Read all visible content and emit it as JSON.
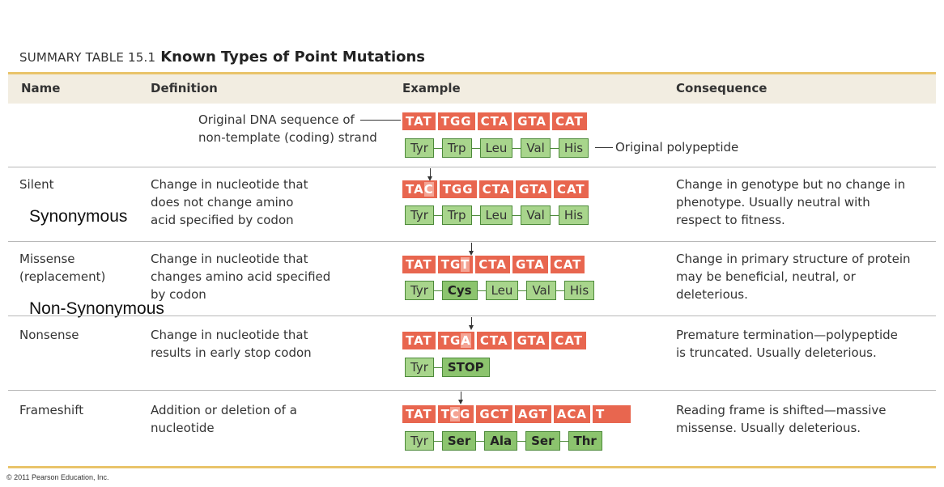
{
  "title": {
    "label": "SUMMARY TABLE 15.1",
    "main": "Known Types of Point Mutations"
  },
  "headers": {
    "name": "Name",
    "definition": "Definition",
    "example": "Example",
    "consequence": "Consequence"
  },
  "original": {
    "label_line1": "Original DNA sequence of",
    "label_line2": "non-template (coding) strand",
    "dna": [
      "TAT",
      "TGG",
      "CTA",
      "GTA",
      "CAT"
    ],
    "peptide": [
      "Tyr",
      "Trp",
      "Leu",
      "Val",
      "His"
    ],
    "peptide_label": "Original polypeptide"
  },
  "rows": [
    {
      "name": "Silent",
      "definition": [
        "Change in nucleotide that",
        "does not change amino",
        "acid specified by codon"
      ],
      "dna": [
        [
          "TA",
          "C",
          ""
        ],
        [
          "TGG",
          "",
          ""
        ],
        [
          "CTA",
          "",
          ""
        ],
        [
          "GTA",
          "",
          ""
        ],
        [
          "CAT",
          "",
          ""
        ]
      ],
      "peptide": [
        "Tyr",
        "Trp",
        "Leu",
        "Val",
        "His"
      ],
      "consequence": [
        "Change in genotype but no change in",
        "phenotype. Usually neutral with",
        "respect to fitness."
      ]
    },
    {
      "name": "Missense",
      "name2": "(replacement)",
      "definition": [
        "Change in nucleotide that",
        "changes amino acid specified",
        "by codon"
      ],
      "dna": [
        [
          "TAT",
          "",
          ""
        ],
        [
          "TG",
          "T",
          ""
        ],
        [
          "CTA",
          "",
          ""
        ],
        [
          "GTA",
          "",
          ""
        ],
        [
          "CAT",
          "",
          ""
        ]
      ],
      "peptide": [
        "Tyr",
        "Cys",
        "Leu",
        "Val",
        "His"
      ],
      "consequence": [
        "Change in primary structure of protein",
        "may be beneficial, neutral, or",
        "deleterious."
      ]
    },
    {
      "name": "Nonsense",
      "definition": [
        "Change in nucleotide that",
        "results in early stop codon"
      ],
      "dna": [
        [
          "TAT",
          "",
          ""
        ],
        [
          "TG",
          "A",
          ""
        ],
        [
          "CTA",
          "",
          ""
        ],
        [
          "GTA",
          "",
          ""
        ],
        [
          "CAT",
          "",
          ""
        ]
      ],
      "peptide": [
        "Tyr",
        "STOP"
      ],
      "consequence": [
        "Premature termination—polypeptide",
        "is truncated. Usually deleterious."
      ]
    },
    {
      "name": "Frameshift",
      "definition": [
        "Addition or deletion of a",
        "nucleotide"
      ],
      "dna": [
        [
          "TAT",
          "",
          ""
        ],
        [
          "T",
          "C",
          "G"
        ],
        [
          "GCT",
          "",
          ""
        ],
        [
          "AGT",
          "",
          ""
        ],
        [
          "ACA",
          "",
          ""
        ],
        [
          "T",
          "",
          ""
        ]
      ],
      "peptide": [
        "Tyr",
        "Ser",
        "Ala",
        "Ser",
        "Thr"
      ],
      "consequence": [
        "Reading frame is shifted—massive",
        "missense. Usually deleterious."
      ]
    }
  ],
  "overlays": {
    "synonymous": "Synonymous",
    "non_synonymous": "Non-Synonymous"
  },
  "copyright": "© 2011 Pearson Education, Inc.",
  "colors": {
    "dna_box": "#e8664f",
    "mutation": "#f4a494",
    "amino_acid": "#a8d58c",
    "rule": "#e9c46a",
    "header_bg": "#f2ede1"
  }
}
